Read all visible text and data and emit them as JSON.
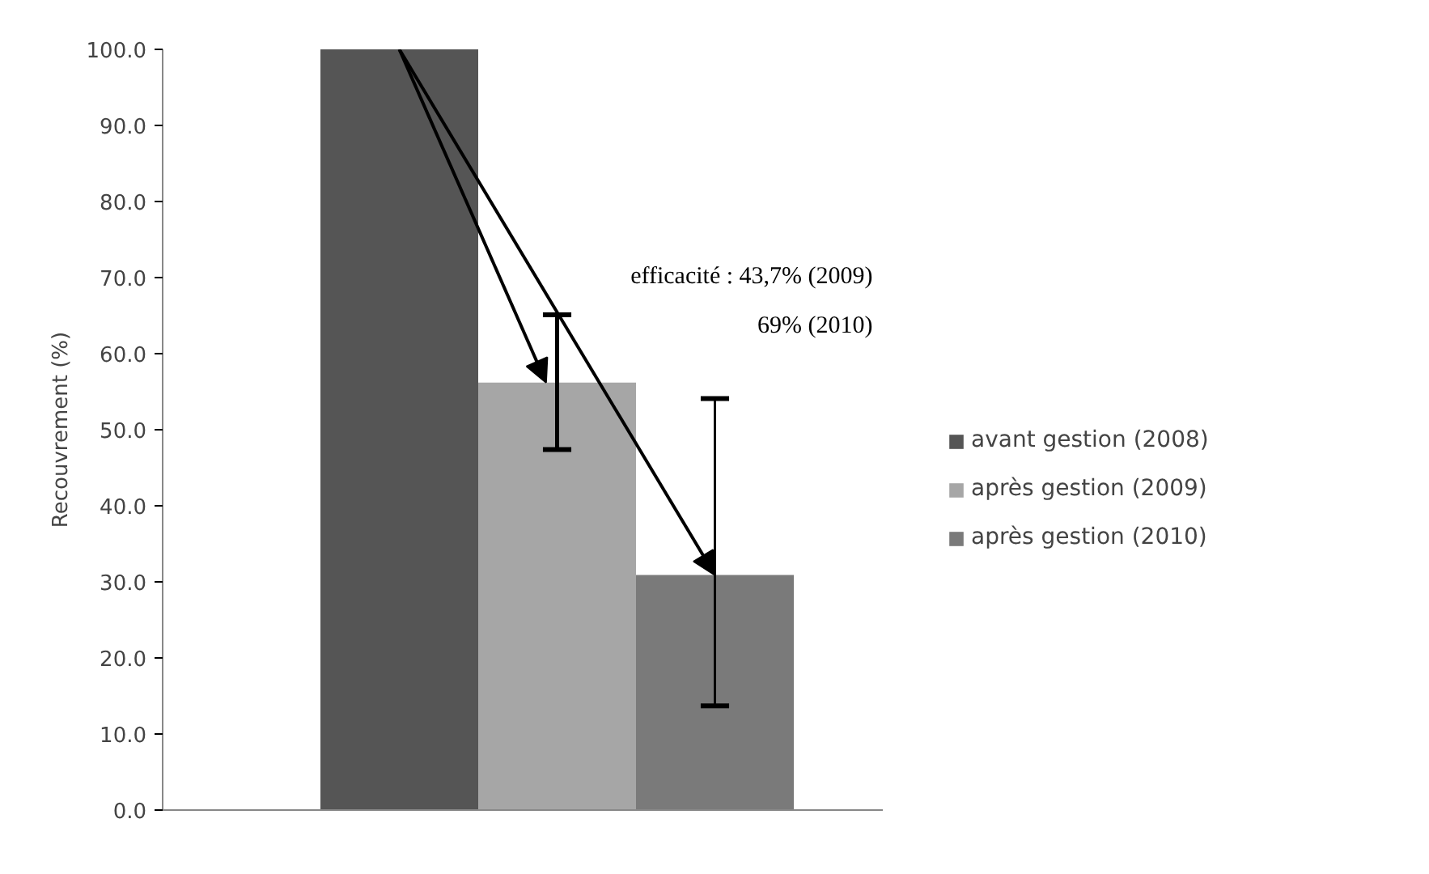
{
  "chart_data": {
    "type": "bar",
    "ylabel": "Recouvrement (%)",
    "categories": [
      null
    ],
    "series": [
      {
        "name": "avant gestion (2008)",
        "color": "#555555",
        "values": [
          100
        ]
      },
      {
        "name": "après gestion (2009)",
        "color": "#a6a6a6",
        "values": [
          56.2
        ],
        "errors": [
          [
            47.4,
            65.1
          ]
        ]
      },
      {
        "name": "après gestion (2010)",
        "color": "#7a7a7a",
        "values": [
          30.9
        ],
        "errors": [
          [
            13.7,
            54.1
          ]
        ]
      }
    ],
    "ylim": [
      0,
      100
    ],
    "yticks": [
      {
        "value": 0,
        "label": "0.0"
      },
      {
        "value": 10,
        "label": "10.0"
      },
      {
        "value": 20,
        "label": "20.0"
      },
      {
        "value": 30,
        "label": "30.0"
      },
      {
        "value": 40,
        "label": "40.0"
      },
      {
        "value": 50,
        "label": "50.0"
      },
      {
        "value": 60,
        "label": "60.0"
      },
      {
        "value": 70,
        "label": "70.0"
      },
      {
        "value": 80,
        "label": "80.0"
      },
      {
        "value": 90,
        "label": "90.0"
      },
      {
        "value": 100,
        "label": "100.0"
      }
    ],
    "annotations": [
      "efficacité : 43,7% (2009)",
      "69% (2010)"
    ],
    "grid": false,
    "legend": "right"
  }
}
